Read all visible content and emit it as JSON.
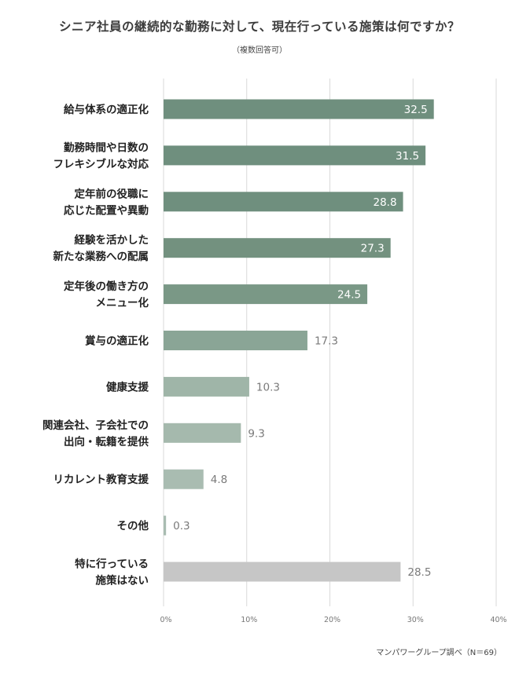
{
  "chart_data": {
    "type": "bar",
    "orientation": "horizontal",
    "title": "シニア社員の継続的な勤務に対して、現在行っている施策は何ですか？",
    "subtitle": "（複数回答可）",
    "categories": [
      [
        "給与体系の適正化"
      ],
      [
        "勤務時間や日数の",
        "フレキシブルな対応"
      ],
      [
        "定年前の役職に",
        "応じた配置や異動"
      ],
      [
        "経験を活かした",
        "新たな業務への配属"
      ],
      [
        "定年後の働き方の",
        "メニュー化"
      ],
      [
        "賞与の適正化"
      ],
      [
        "健康支援"
      ],
      [
        "関連会社、子会社での",
        "出向・転籍を提供"
      ],
      [
        "リカレント教育支援"
      ],
      [
        "その他"
      ],
      [
        "特に行っている",
        "施策はない"
      ]
    ],
    "values": [
      32.5,
      31.5,
      28.8,
      27.3,
      24.5,
      17.3,
      10.3,
      9.3,
      4.8,
      0.3,
      28.5
    ],
    "value_labels": [
      "32.5",
      "31.5",
      "28.8",
      "27.3",
      "24.5",
      "17.3",
      "10.3",
      "9.3",
      "4.8",
      "0.3",
      "28.5"
    ],
    "xlim": [
      0,
      40
    ],
    "xticks": [
      "0%",
      "10%",
      "20%",
      "30%",
      "40%"
    ],
    "xtick_values": [
      0,
      10,
      20,
      30,
      40
    ],
    "grid": true,
    "bar_colors": [
      "#6f8f7e",
      "#6f8f7e",
      "#6f8f7e",
      "#73917f",
      "#7a9886",
      "#8aa596",
      "#9fb5a8",
      "#a5b9ad",
      "#a9bcb1",
      "#a9bcb1",
      "#c6c6c6"
    ],
    "label_inside": [
      true,
      true,
      true,
      true,
      true,
      false,
      false,
      false,
      false,
      false,
      false
    ],
    "source": "マンパワーグループ調べ（N＝69）"
  }
}
